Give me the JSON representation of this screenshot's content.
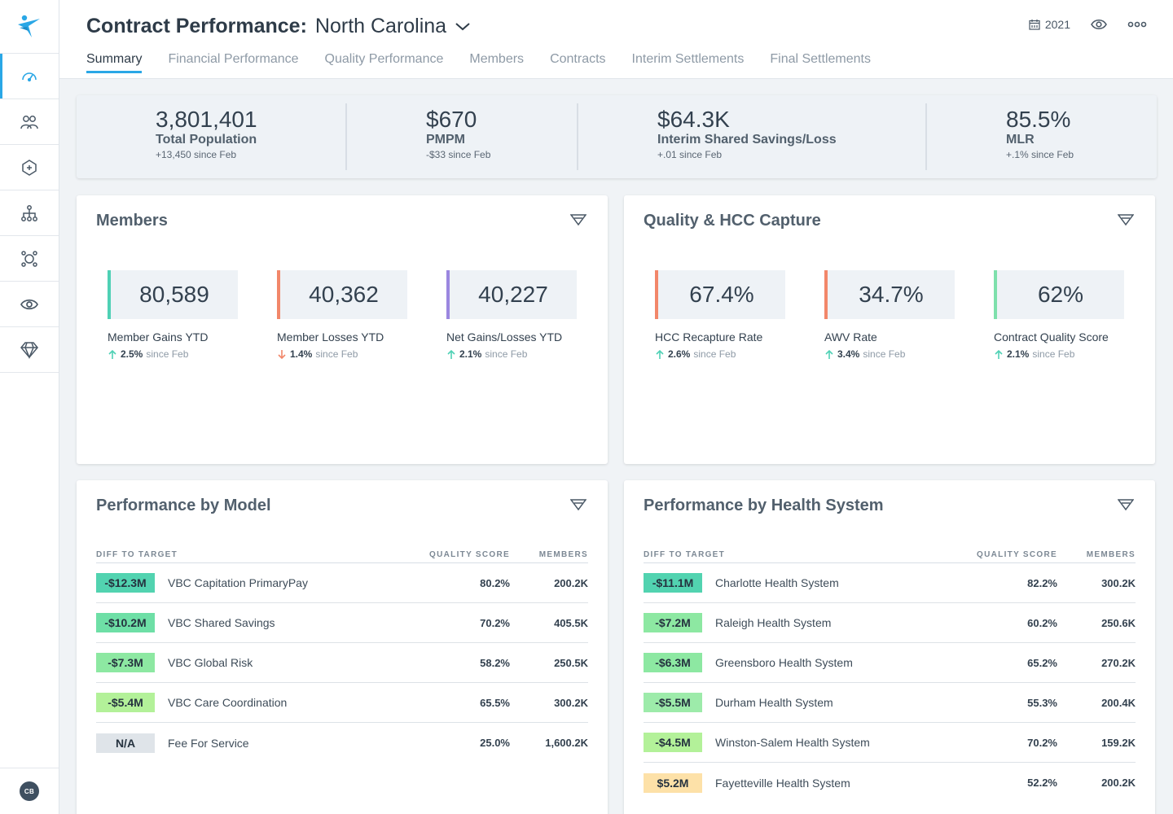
{
  "header": {
    "title": "Contract Performance:",
    "region": "North Carolina",
    "year": "2021",
    "tabs": [
      "Summary",
      "Financial Performance",
      "Quality Performance",
      "Members",
      "Contracts",
      "Interim Settlements",
      "Final Settlements"
    ]
  },
  "sidebar": {
    "icons": [
      "dashboard-icon",
      "members-icon",
      "network-icon",
      "hierarchy-icon",
      "integrations-icon",
      "eye-icon",
      "diamond-icon"
    ],
    "avatar_initials": "CB"
  },
  "kpis": [
    {
      "value": "3,801,401",
      "label": "Total Population",
      "delta": "+13,450 since Feb"
    },
    {
      "value": "$670",
      "label": "PMPM",
      "delta": "-$33 since Feb"
    },
    {
      "value": "$64.3K",
      "label": "Interim Shared Savings/Loss",
      "delta": "+.01 since Feb"
    },
    {
      "value": "85.5%",
      "label": "MLR",
      "delta": "+.1% since Feb"
    }
  ],
  "members": {
    "title": "Members",
    "metrics": [
      {
        "value": "80,589",
        "label": "Member Gains YTD",
        "delta": "2.5%",
        "since": "since Feb",
        "direction": "up",
        "accent": "#4fd1b5"
      },
      {
        "value": "40,362",
        "label": "Member Losses YTD",
        "delta": "1.4%",
        "since": "since Feb",
        "direction": "down",
        "accent": "#f2876a"
      },
      {
        "value": "40,227",
        "label": "Net Gains/Losses YTD",
        "delta": "2.1%",
        "since": "since Feb",
        "direction": "up",
        "accent": "#9b87e0"
      }
    ]
  },
  "quality": {
    "title": "Quality & HCC Capture",
    "metrics": [
      {
        "value": "67.4%",
        "label": "HCC Recapture Rate",
        "delta": "2.6%",
        "since": "since Feb",
        "direction": "up",
        "accent": "#f2876a"
      },
      {
        "value": "34.7%",
        "label": "AWV Rate",
        "delta": "3.4%",
        "since": "since Feb",
        "direction": "up",
        "accent": "#f2876a"
      },
      {
        "value": "62%",
        "label": "Contract Quality Score",
        "delta": "2.1%",
        "since": "since Feb",
        "direction": "up",
        "accent": "#7ee0ac"
      }
    ]
  },
  "model_table": {
    "title": "Performance by Model",
    "headers": [
      "DIFF TO TARGET",
      "QUALITY SCORE",
      "MEMBERS"
    ],
    "rows": [
      {
        "diff": "-$12.3M",
        "name": "VBC Capitation PrimaryPay",
        "quality": "80.2%",
        "members": "200.2K",
        "color": "#52d3b0"
      },
      {
        "diff": "-$10.2M",
        "name": "VBC Shared Savings",
        "quality": "70.2%",
        "members": "405.5K",
        "color": "#6edfa6"
      },
      {
        "diff": "-$7.3M",
        "name": "VBC Global Risk",
        "quality": "58.2%",
        "members": "250.5K",
        "color": "#8de8a2"
      },
      {
        "diff": "-$5.4M",
        "name": "VBC Care Coordination",
        "quality": "65.5%",
        "members": "300.2K",
        "color": "#b3f199"
      },
      {
        "diff": "N/A",
        "name": "Fee For Service",
        "quality": "25.0%",
        "members": "1,600.2K",
        "color": "#dfe4e9"
      }
    ]
  },
  "health_table": {
    "title": "Performance by Health System",
    "headers": [
      "DIFF TO TARGET",
      "QUALITY SCORE",
      "MEMBERS"
    ],
    "rows": [
      {
        "diff": "-$11.1M",
        "name": "Charlotte Health System",
        "quality": "82.2%",
        "members": "300.2K",
        "color": "#52d3b0"
      },
      {
        "diff": "-$7.2M",
        "name": "Raleigh Health System",
        "quality": "60.2%",
        "members": "250.6K",
        "color": "#8de8a2"
      },
      {
        "diff": "-$6.3M",
        "name": "Greensboro Health System",
        "quality": "65.2%",
        "members": "270.2K",
        "color": "#8de8a2"
      },
      {
        "diff": "-$5.5M",
        "name": "Durham Health System",
        "quality": "55.3%",
        "members": "200.4K",
        "color": "#9debaa"
      },
      {
        "diff": "-$4.5M",
        "name": "Winston-Salem Health System",
        "quality": "70.2%",
        "members": "159.2K",
        "color": "#b3f199"
      },
      {
        "diff": "$5.2M",
        "name": "Fayetteville Health System",
        "quality": "52.2%",
        "members": "200.2K",
        "color": "#fde1a8"
      }
    ]
  }
}
